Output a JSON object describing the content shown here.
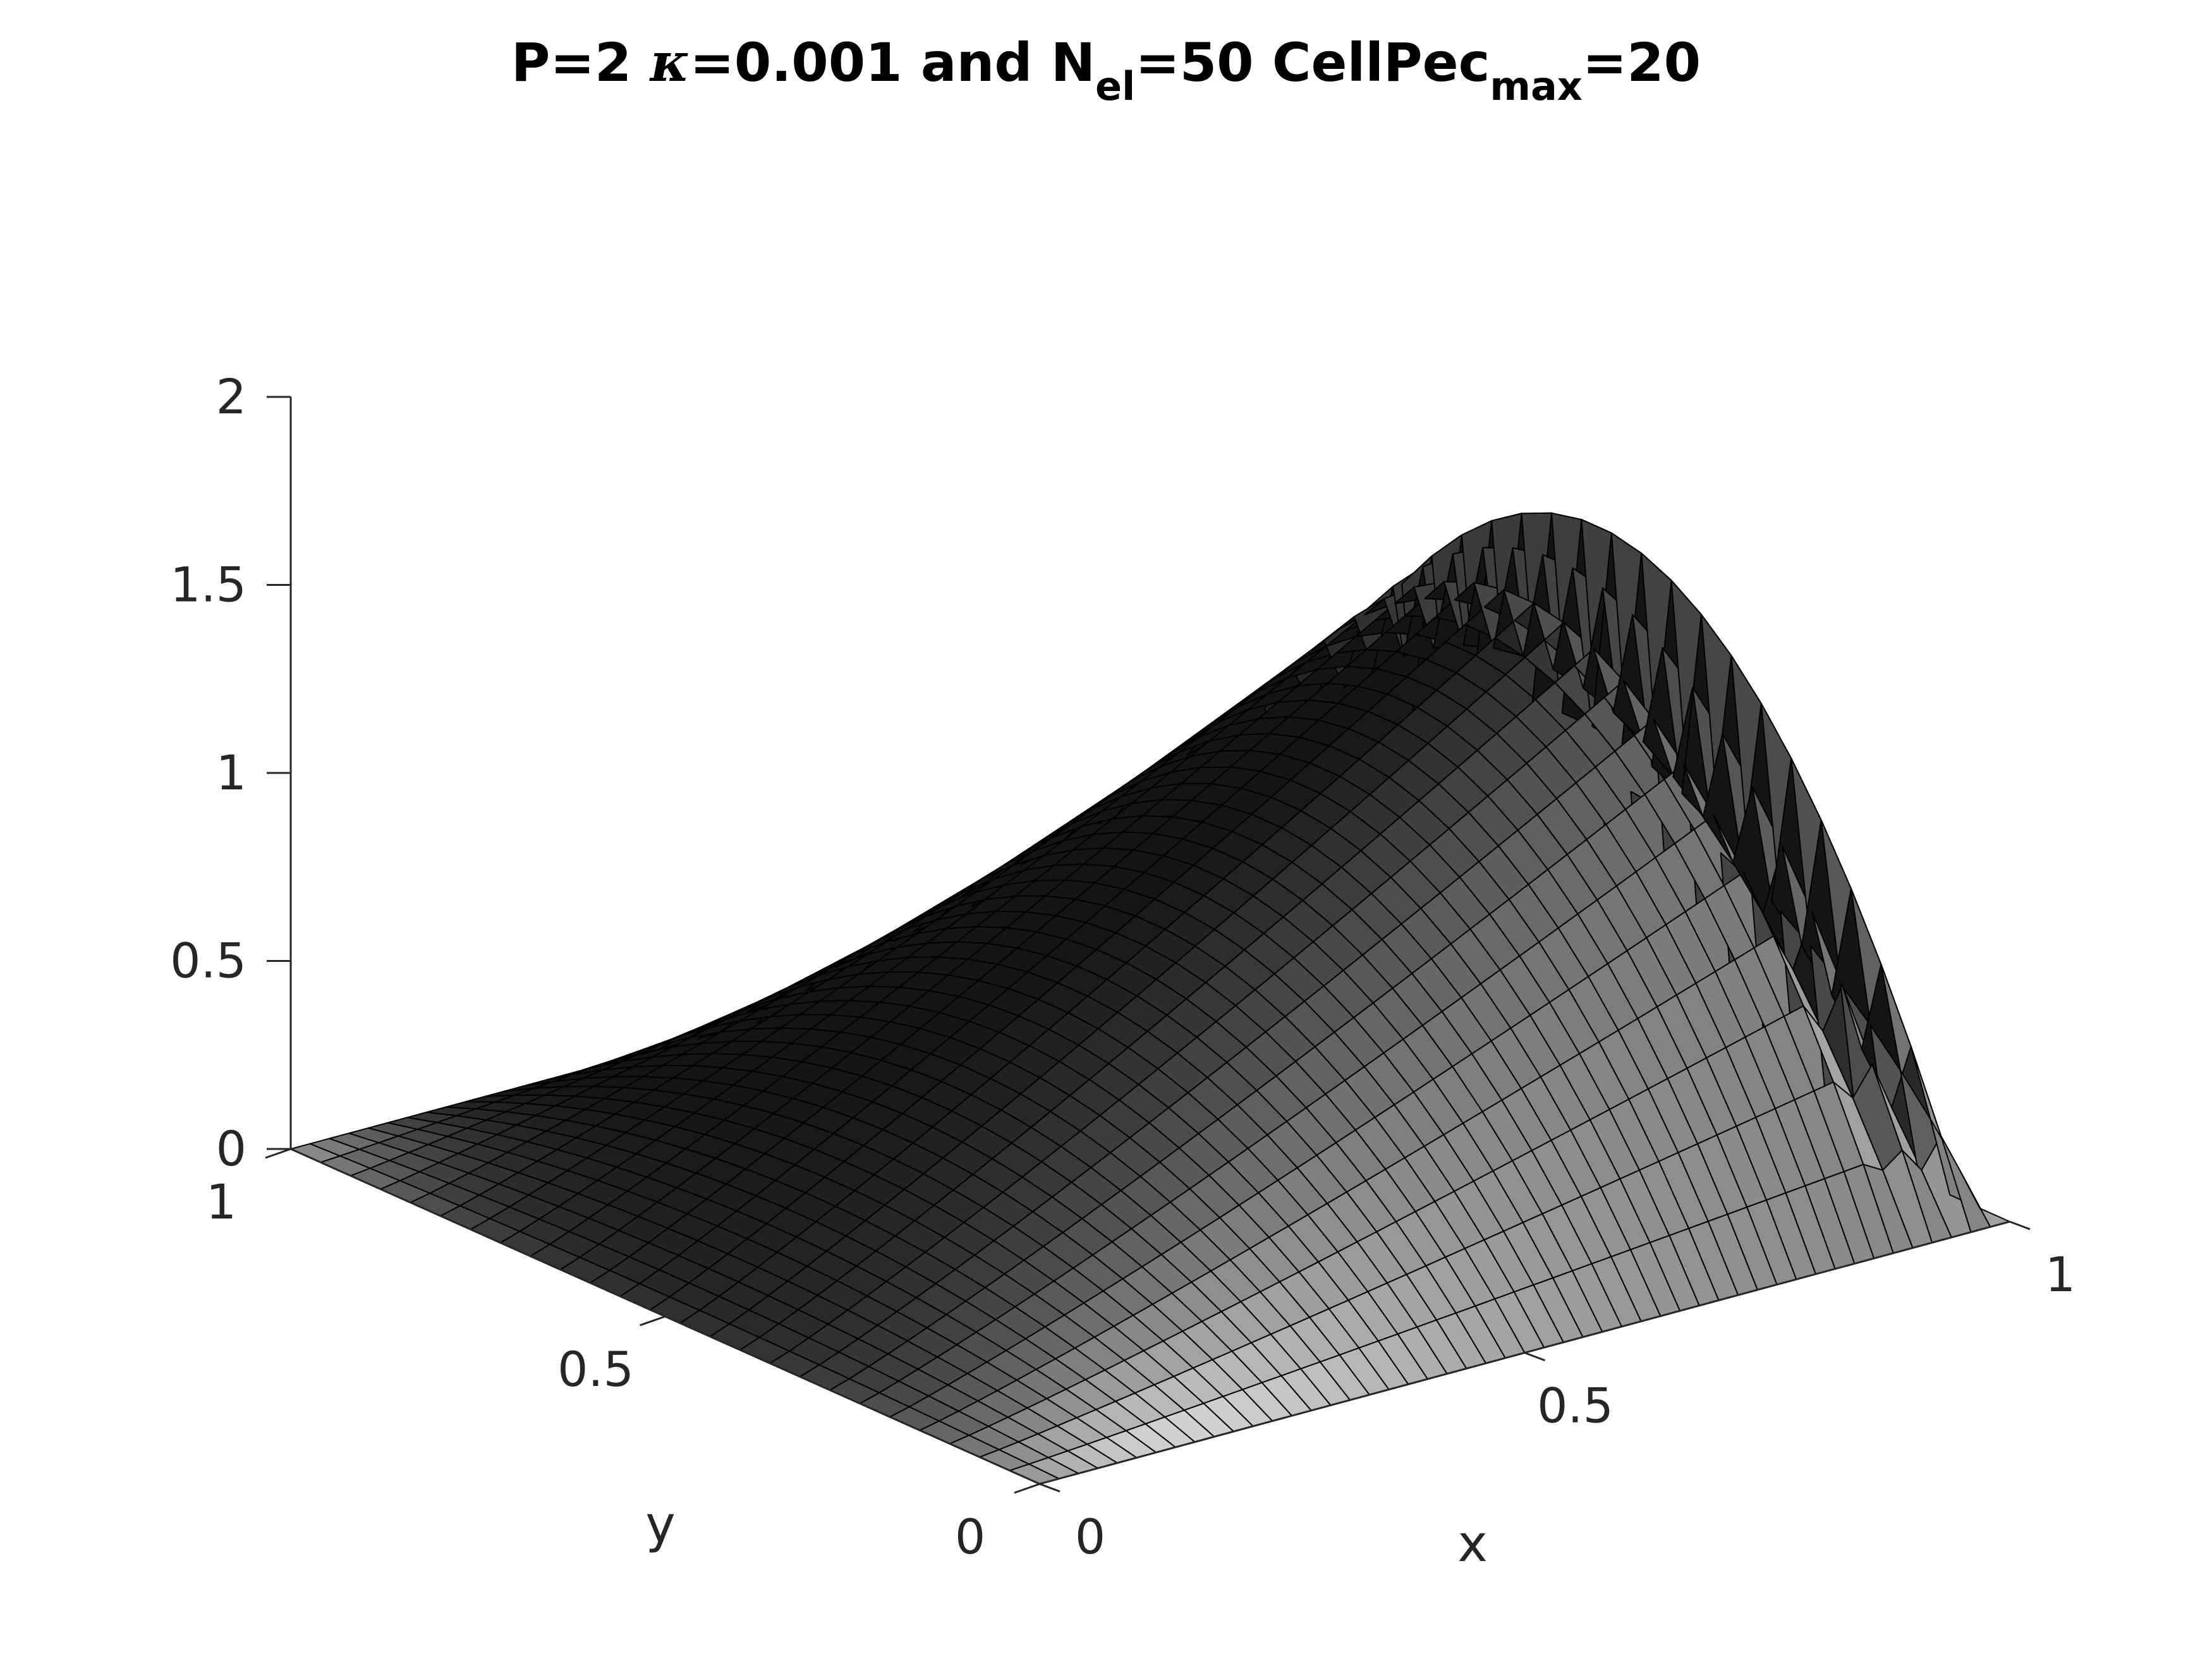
{
  "chart_data": {
    "type": "surface",
    "title": {
      "prefix": "P=2 ",
      "kappa_symbol": "κ",
      "kappa_part": "=0.001 and N",
      "nel_sub": "el",
      "nel_part": "=50 CellPec",
      "max_sub": "max",
      "end": "=20"
    },
    "xlabel": "x",
    "ylabel": "y",
    "zlabel": "",
    "xlim": [
      0,
      1
    ],
    "ylim": [
      0,
      1
    ],
    "zlim": [
      0,
      2
    ],
    "x_ticks": [
      {
        "value": 0,
        "label": "0"
      },
      {
        "value": 0.5,
        "label": "0.5"
      },
      {
        "value": 1,
        "label": "1"
      }
    ],
    "y_ticks": [
      {
        "value": 0,
        "label": "0"
      },
      {
        "value": 0.5,
        "label": "0.5"
      },
      {
        "value": 1,
        "label": "1"
      }
    ],
    "z_ticks": [
      {
        "value": 0,
        "label": "0"
      },
      {
        "value": 0.5,
        "label": "0.5"
      },
      {
        "value": 1,
        "label": "1"
      },
      {
        "value": 1.5,
        "label": "1.5"
      },
      {
        "value": 2,
        "label": "2"
      }
    ],
    "surface": {
      "function": "z = 6*y*(1-y) * x * (1 - exp(-(1-x)/delta)) with oscillations near x=1",
      "grid_x": 50,
      "grid_y": 25,
      "peak_z": 1.5,
      "colormap": "gray"
    },
    "grid": false,
    "legend": "none"
  }
}
